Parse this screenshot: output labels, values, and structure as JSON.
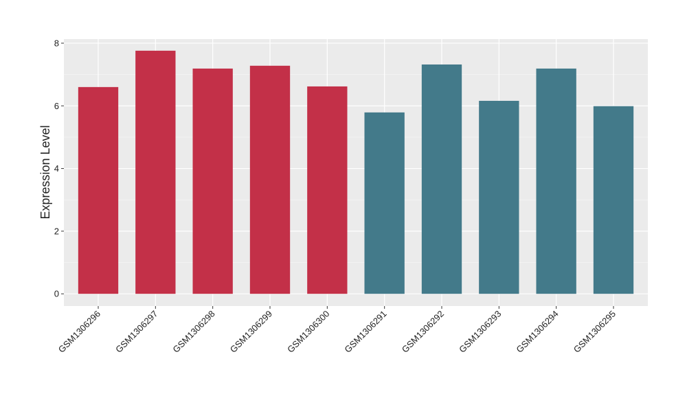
{
  "chart_data": {
    "type": "bar",
    "y_label": "Expression Level",
    "categories": [
      "GSM1306296",
      "GSM1306297",
      "GSM1306298",
      "GSM1306299",
      "GSM1306300",
      "GSM1306291",
      "GSM1306292",
      "GSM1306293",
      "GSM1306294",
      "GSM1306295"
    ],
    "values": [
      6.6,
      7.76,
      7.19,
      7.28,
      6.62,
      5.79,
      7.32,
      6.16,
      7.19,
      5.99
    ],
    "colors": [
      "#c33048",
      "#c33048",
      "#c33048",
      "#c33048",
      "#c33048",
      "#437a8a",
      "#437a8a",
      "#437a8a",
      "#437a8a",
      "#437a8a"
    ],
    "ylim": [
      -0.39,
      8.13
    ],
    "yticks": [
      0,
      2,
      4,
      6,
      8
    ],
    "grid": true
  }
}
